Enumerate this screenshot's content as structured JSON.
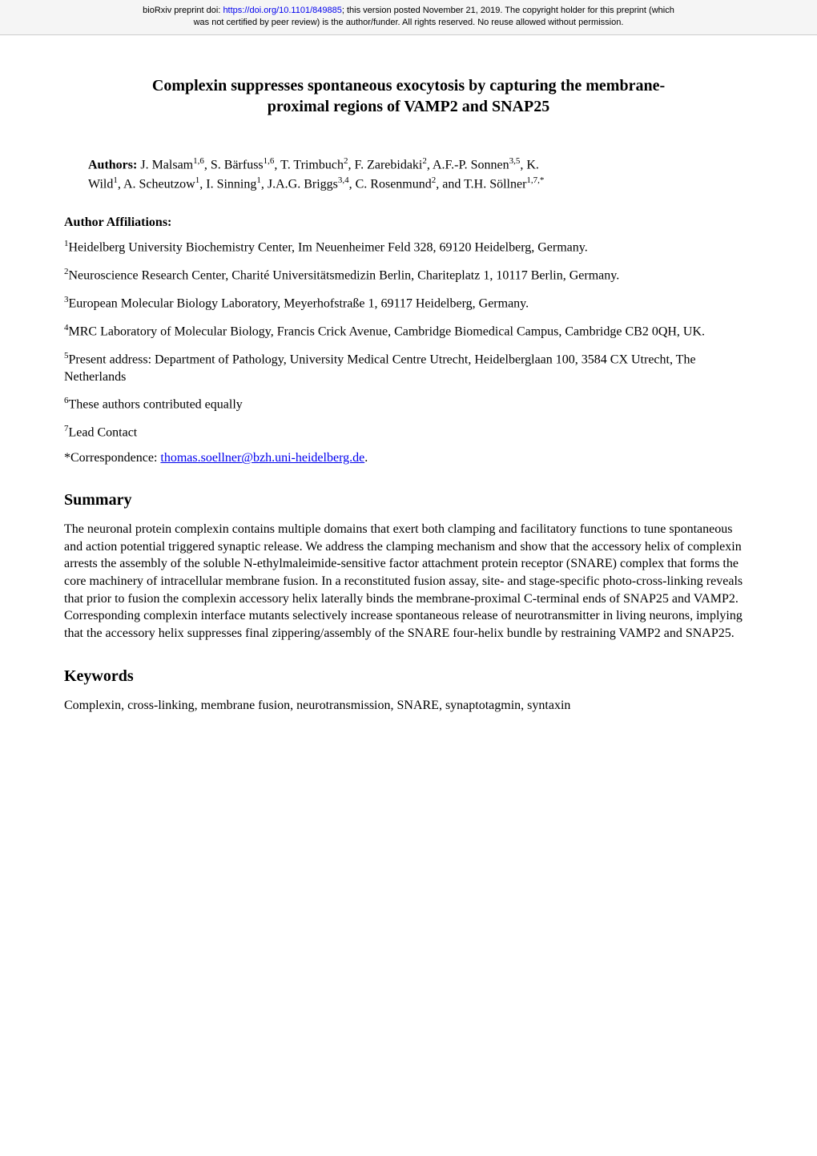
{
  "header": {
    "line1_pre": "bioRxiv preprint doi: ",
    "doi_url": "https://doi.org/10.1101/849885",
    "line1_post": "; this version posted November 21, 2019. The copyright holder for this preprint (which",
    "line2": "was not certified by peer review) is the author/funder. All rights reserved. No reuse allowed without permission."
  },
  "title": {
    "line1": "Complexin suppresses spontaneous exocytosis by capturing the membrane-",
    "line2": "proximal regions of VAMP2 and SNAP25"
  },
  "authors": {
    "label": "Authors:  ",
    "line1_parts": [
      {
        "t": "J. Malsam",
        "s": "1,6"
      },
      {
        "t": ", S. Bärfuss",
        "s": "1,6"
      },
      {
        "t": ", T. Trimbuch",
        "s": "2"
      },
      {
        "t": ", F. Zarebidaki",
        "s": "2"
      },
      {
        "t": ", A.F.-P. Sonnen",
        "s": "3,5"
      },
      {
        "t": ", K.",
        "s": ""
      }
    ],
    "line2_parts": [
      {
        "t": "Wild",
        "s": "1"
      },
      {
        "t": ", A. Scheutzow",
        "s": "1"
      },
      {
        "t": ", I. Sinning",
        "s": "1"
      },
      {
        "t": ", J.A.G. Briggs",
        "s": "3,4"
      },
      {
        "t": ", C. Rosenmund",
        "s": "2"
      },
      {
        "t": ", and T.H. Söllner",
        "s": "1,7,*"
      }
    ]
  },
  "affiliations_label": "Author Affiliations:",
  "affiliations": [
    {
      "sup": "1",
      "text": "Heidelberg University Biochemistry Center, Im Neuenheimer Feld 328, 69120 Heidelberg, Germany."
    },
    {
      "sup": "2",
      "text": "Neuroscience Research Center, Charité Universitätsmedizin Berlin, Chariteplatz 1, 10117 Berlin, Germany."
    },
    {
      "sup": "3",
      "text": "European Molecular Biology Laboratory, Meyerhofstraße 1, 69117 Heidelberg, Germany."
    },
    {
      "sup": "4",
      "text": "MRC Laboratory of Molecular Biology, Francis Crick Avenue, Cambridge Biomedical Campus, Cambridge CB2 0QH, UK."
    },
    {
      "sup": "5",
      "text": "Present address: Department of Pathology, University Medical Centre Utrecht, Heidelberglaan 100, 3584 CX Utrecht, The Netherlands"
    },
    {
      "sup": "6",
      "text": "These authors contributed equally"
    },
    {
      "sup": "7",
      "text": "Lead Contact"
    }
  ],
  "correspondence": {
    "prefix": "*Correspondence:  ",
    "email": "thomas.soellner@bzh.uni-heidelberg.de",
    "suffix": "."
  },
  "summary": {
    "heading": "Summary",
    "body": "The neuronal protein complexin contains multiple domains that exert both clamping and facilitatory functions to tune spontaneous and action potential triggered synaptic release. We address the clamping mechanism and show that the accessory helix of complexin arrests the assembly of the soluble N-ethylmaleimide-sensitive factor attachment protein receptor (SNARE) complex that forms the core machinery of intracellular membrane fusion. In a reconstituted fusion assay, site- and stage-specific photo-cross-linking reveals that prior to fusion the complexin accessory helix laterally binds the membrane-proximal C-terminal ends of SNAP25 and VAMP2. Corresponding complexin interface mutants selectively increase spontaneous release of neurotransmitter in living neurons, implying that the accessory helix suppresses final zippering/assembly of the SNARE four-helix bundle by restraining VAMP2 and SNAP25."
  },
  "keywords": {
    "heading": "Keywords",
    "body": "Complexin, cross-linking, membrane fusion, neurotransmission, SNARE, synaptotagmin, syntaxin"
  },
  "colors": {
    "link": "#0000ee",
    "header_bg": "#f5f5f5",
    "header_border": "#cccccc",
    "text": "#000000",
    "page_bg": "#ffffff"
  }
}
